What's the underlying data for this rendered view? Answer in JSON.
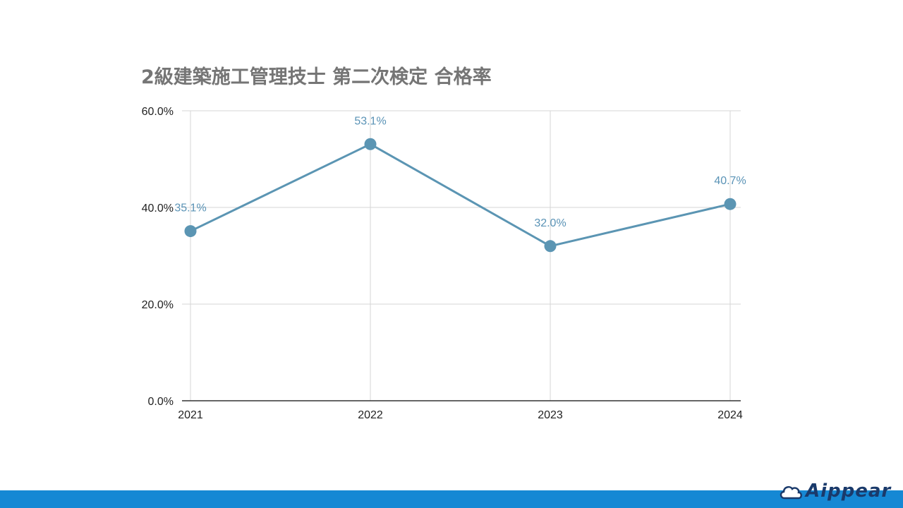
{
  "chart_data": {
    "type": "line",
    "title": "2級建築施工管理技士 第二次検定 合格率",
    "categories": [
      "2021",
      "2022",
      "2023",
      "2024"
    ],
    "series": [
      {
        "values": [
          35.1,
          53.1,
          32.0,
          40.7
        ]
      }
    ],
    "data_labels": [
      "35.1%",
      "53.1%",
      "32.0%",
      "40.7%"
    ],
    "y_ticks": [
      "0.0%",
      "20.0%",
      "40.0%",
      "60.0%"
    ],
    "y_tick_values": [
      0,
      20,
      40,
      60
    ],
    "ylim": [
      0,
      60
    ],
    "grid": true,
    "series_color": "#5b95b3",
    "label_color": "#5a93b6"
  },
  "footer": {
    "bar_color": "#1588d4",
    "logo_text": "Aippear"
  }
}
